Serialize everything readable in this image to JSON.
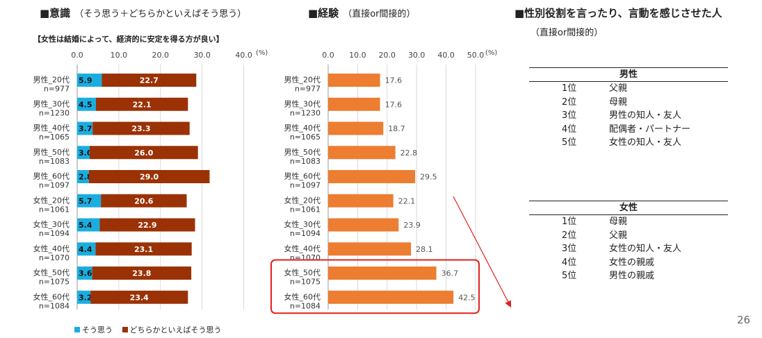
{
  "sections": {
    "awareness": {
      "title": "■意識",
      "subtitle": "（そう思う＋どちらかといえばそう思う）"
    },
    "experience": {
      "title": "■経験",
      "subtitle": "（直接or間接的）"
    },
    "ranking": {
      "title": "■性別役割を言ったり、言動を感じさせた人",
      "subtitle": "（直接or間接的）"
    }
  },
  "question_label": "【女性は結婚によって、経済的に安定を得る方が良い】",
  "chart_data": [
    {
      "type": "bar",
      "stacked": true,
      "orientation": "horizontal",
      "categories": [
        "男性_20代",
        "男性_30代",
        "男性_40代",
        "男性_50代",
        "男性_60代",
        "女性_20代",
        "女性_30代",
        "女性_40代",
        "女性_50代",
        "女性_60代"
      ],
      "sample_sizes": [
        "n=977",
        "n=1230",
        "n=1065",
        "n=1083",
        "n=1097",
        "n=1061",
        "n=1094",
        "n=1070",
        "n=1075",
        "n=1084"
      ],
      "series": [
        {
          "name": "そう思う",
          "color": "#1aaee0",
          "values": [
            5.9,
            4.5,
            3.7,
            3.0,
            2.8,
            5.7,
            5.4,
            4.4,
            3.6,
            3.2
          ]
        },
        {
          "name": "どちらかといえばそう思う",
          "color": "#9a3206",
          "values": [
            22.7,
            22.1,
            23.3,
            26.0,
            29.0,
            20.6,
            22.9,
            23.1,
            23.8,
            23.4
          ]
        }
      ],
      "xlim": [
        0,
        40
      ],
      "ticks": [
        "0.0",
        "10.0",
        "20.0",
        "30.0",
        "40.0"
      ],
      "unit": "(%)",
      "legend": "bottom"
    },
    {
      "type": "bar",
      "orientation": "horizontal",
      "categories": [
        "男性_20代",
        "男性_30代",
        "男性_40代",
        "男性_50代",
        "男性_60代",
        "女性_20代",
        "女性_30代",
        "女性_40代",
        "女性_50代",
        "女性_60代"
      ],
      "sample_sizes": [
        "n=977",
        "n=1230",
        "n=1065",
        "n=1083",
        "n=1097",
        "n=1061",
        "n=1094",
        "n=1070",
        "n=1075",
        "n=1084"
      ],
      "series": [
        {
          "color": "#ed7d31",
          "values": [
            17.6,
            17.6,
            18.7,
            22.8,
            29.5,
            22.1,
            23.9,
            28.1,
            36.7,
            42.5
          ]
        }
      ],
      "xlim": [
        0,
        50
      ],
      "ticks": [
        "0.0",
        "10.0",
        "20.0",
        "30.0",
        "40.0",
        "50.0"
      ],
      "unit": "(%)",
      "highlight_categories": [
        "女性_50代",
        "女性_60代"
      ],
      "highlight_color": "#e0201c"
    }
  ],
  "ranking_tables": [
    {
      "header": "男性",
      "rows": [
        {
          "rank": "1位",
          "name": "父親"
        },
        {
          "rank": "2位",
          "name": "母親"
        },
        {
          "rank": "3位",
          "name": "男性の知人・友人"
        },
        {
          "rank": "4位",
          "name": "配偶者・パートナー"
        },
        {
          "rank": "5位",
          "name": "女性の知人・友人"
        }
      ]
    },
    {
      "header": "女性",
      "rows": [
        {
          "rank": "1位",
          "name": "母親"
        },
        {
          "rank": "2位",
          "name": "父親"
        },
        {
          "rank": "3位",
          "name": "女性の知人・友人"
        },
        {
          "rank": "4位",
          "name": "女性の親戚"
        },
        {
          "rank": "5位",
          "name": "男性の親戚"
        }
      ]
    }
  ],
  "page_number": "26"
}
